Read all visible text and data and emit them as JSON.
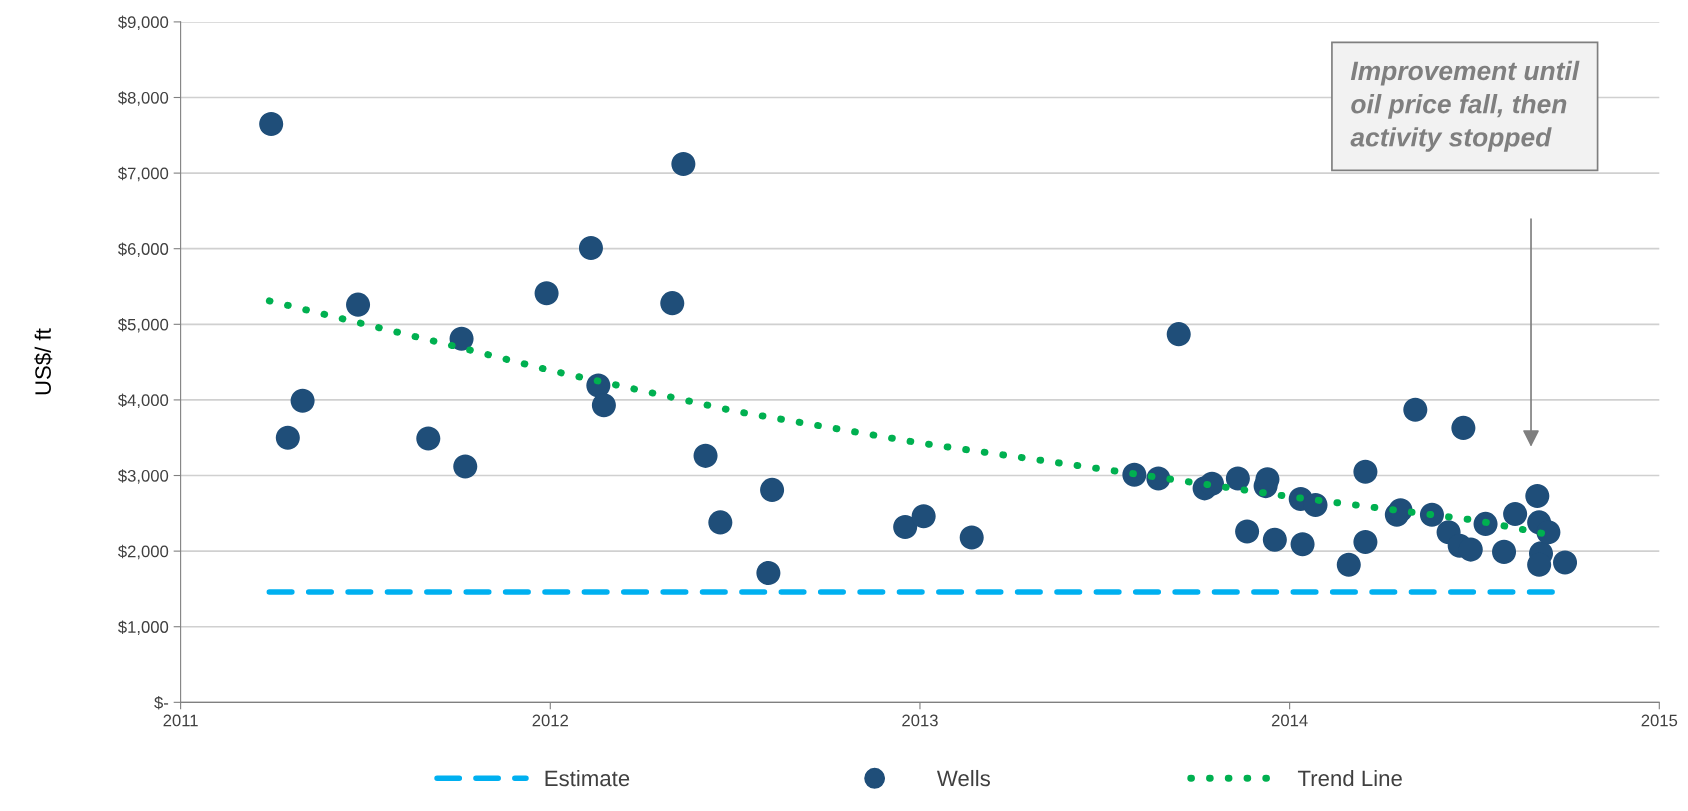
{
  "chart_data": {
    "type": "scatter",
    "ylabel": "US$/ ft",
    "xlim": [
      2011,
      2015
    ],
    "xticks": [
      2011,
      2012,
      2013,
      2014,
      2015
    ],
    "ylim": [
      0,
      9000
    ],
    "yticks": [
      {
        "value": 0,
        "label": "$-"
      },
      {
        "value": 1000,
        "label": "$1,000"
      },
      {
        "value": 2000,
        "label": "$2,000"
      },
      {
        "value": 3000,
        "label": "$3,000"
      },
      {
        "value": 4000,
        "label": "$4,000"
      },
      {
        "value": 5000,
        "label": "$5,000"
      },
      {
        "value": 6000,
        "label": "$6,000"
      },
      {
        "value": 7000,
        "label": "$7,000"
      },
      {
        "value": 8000,
        "label": "$8,000"
      },
      {
        "value": 9000,
        "label": "$9,000"
      }
    ],
    "grid": "y",
    "legend": "bottom",
    "series": [
      {
        "name": "Estimate",
        "type": "line",
        "line_style": "dashed",
        "marker": "none",
        "color": "#00b0f0",
        "x": [
          2011.24,
          2014.71
        ],
        "values": [
          1460,
          1460
        ]
      },
      {
        "name": "Wells",
        "marker": "circle",
        "color": "#1f4e79",
        "x": [
          2011.245,
          2011.29,
          2011.33,
          2011.48,
          2011.67,
          2011.76,
          2011.77,
          2011.99,
          2012.11,
          2012.13,
          2012.145,
          2012.33,
          2012.36,
          2012.42,
          2012.46,
          2012.59,
          2012.6,
          2012.96,
          2013.01,
          2013.14,
          2013.58,
          2013.645,
          2013.7,
          2013.77,
          2013.79,
          2013.86,
          2013.885,
          2013.935,
          2013.94,
          2013.96,
          2014.03,
          2014.035,
          2014.07,
          2014.16,
          2014.205,
          2014.205,
          2014.29,
          2014.3,
          2014.34,
          2014.385,
          2014.43,
          2014.46,
          2014.47,
          2014.49,
          2014.53,
          2014.58,
          2014.61,
          2014.67,
          2014.675,
          2014.68,
          2014.675,
          2014.7,
          2014.745
        ],
        "values": [
          7650,
          3500,
          3990,
          5260,
          3490,
          4810,
          3120,
          5410,
          6010,
          4190,
          3930,
          5280,
          7120,
          3260,
          2380,
          1710,
          2810,
          2320,
          2460,
          2180,
          3010,
          2960,
          4870,
          2830,
          2890,
          2960,
          2260,
          2860,
          2950,
          2150,
          2690,
          2090,
          2610,
          1820,
          3050,
          2120,
          2480,
          2540,
          3870,
          2480,
          2250,
          2070,
          3630,
          2020,
          2360,
          1990,
          2490,
          2730,
          2380,
          1970,
          1820,
          2250,
          1850
        ]
      },
      {
        "name": "Trend Line",
        "type": "line",
        "line_style": "dotted",
        "marker": "none",
        "color": "#00b050",
        "x": [
          2011.24,
          2011.75,
          2012.0,
          2012.5,
          2013.0,
          2013.5,
          2014.0,
          2014.5,
          2014.71
        ],
        "values": [
          5310,
          4700,
          4390,
          3850,
          3430,
          3080,
          2720,
          2410,
          2210
        ]
      }
    ],
    "annotations": [
      "Improvement until\noil price fall, then\nactivity stopped"
    ]
  }
}
